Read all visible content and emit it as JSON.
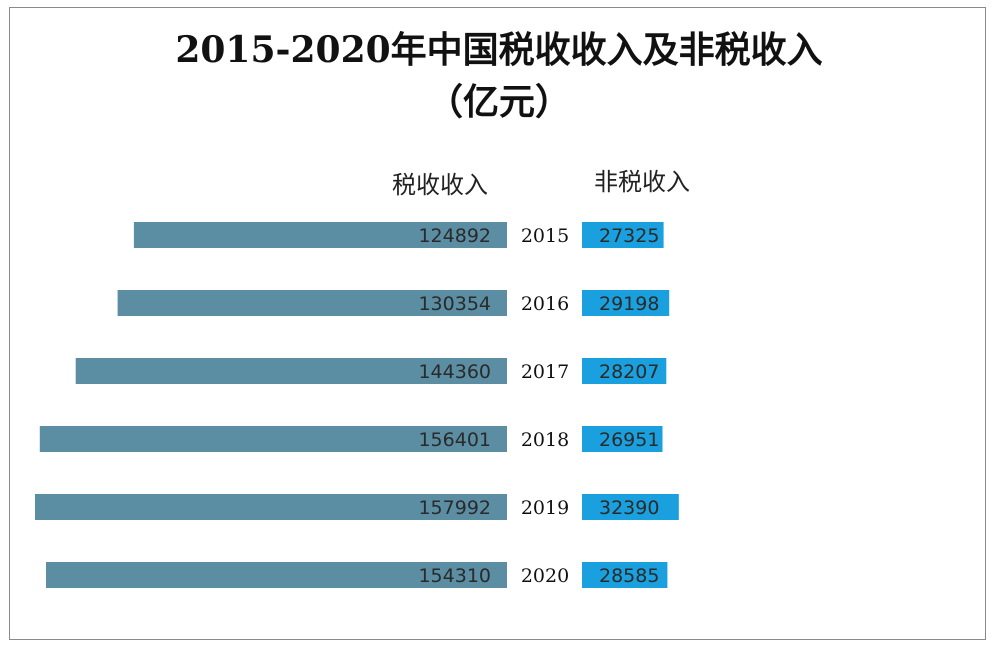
{
  "chart_data": {
    "type": "bar",
    "title_line1": "2015-2020年中国税收收入及非税收入",
    "title_line2": "（亿元）",
    "categories": [
      "2015",
      "2016",
      "2017",
      "2018",
      "2019",
      "2020"
    ],
    "series": [
      {
        "name": "税收收入",
        "values": [
          124892,
          130354,
          144360,
          156401,
          157992,
          154310
        ],
        "color": "#5b8ea3"
      },
      {
        "name": "非税收入",
        "values": [
          27325,
          29198,
          28207,
          26951,
          32390,
          28585
        ],
        "color": "#1aa0de"
      }
    ],
    "xlabel": "",
    "ylabel": "",
    "legend": "top"
  }
}
